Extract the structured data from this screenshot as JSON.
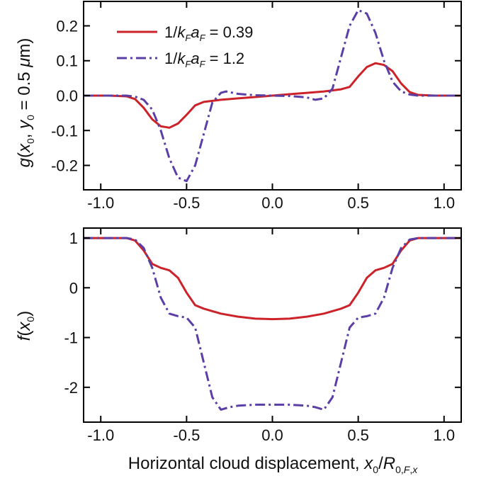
{
  "chart_data": [
    {
      "type": "line",
      "ylabel": "g(x0, y0 = 0.5 μm)",
      "xlim": [
        -1.1,
        1.1
      ],
      "ylim": [
        -0.27,
        0.27
      ],
      "xticks": [
        "-1.0",
        "-0.5",
        "0.0",
        "0.5",
        "1.0"
      ],
      "yticks": [
        "0.2",
        "0.1",
        "0.0",
        "-0.1",
        "-0.2"
      ],
      "legend_position": "top-left",
      "series": [
        {
          "name": "1/kFaF = 0.39",
          "color": "#cc2229",
          "style": "solid",
          "x": [
            -1.1,
            -0.95,
            -0.85,
            -0.8,
            -0.75,
            -0.7,
            -0.65,
            -0.6,
            -0.55,
            -0.5,
            -0.45,
            -0.4,
            -0.3,
            -0.2,
            -0.1,
            0.0,
            0.1,
            0.2,
            0.3,
            0.4,
            0.45,
            0.5,
            0.55,
            0.6,
            0.65,
            0.7,
            0.75,
            0.8,
            0.85,
            0.95,
            1.1
          ],
          "y": [
            0,
            0,
            -0.002,
            -0.01,
            -0.035,
            -0.068,
            -0.088,
            -0.092,
            -0.08,
            -0.055,
            -0.028,
            -0.018,
            -0.012,
            -0.008,
            -0.004,
            0,
            0.004,
            0.008,
            0.012,
            0.018,
            0.025,
            0.055,
            0.082,
            0.093,
            0.088,
            0.07,
            0.035,
            0.01,
            0.002,
            0,
            0
          ]
        },
        {
          "name": "1/kFaF = 1.2",
          "color": "#5b3fa6",
          "style": "dash-dot",
          "x": [
            -1.1,
            -0.85,
            -0.8,
            -0.75,
            -0.7,
            -0.65,
            -0.6,
            -0.55,
            -0.5,
            -0.45,
            -0.4,
            -0.35,
            -0.3,
            -0.27,
            -0.2,
            -0.1,
            0.0,
            0.1,
            0.2,
            0.25,
            0.3,
            0.35,
            0.4,
            0.45,
            0.5,
            0.55,
            0.6,
            0.65,
            0.7,
            0.75,
            0.8,
            0.85,
            1.1
          ],
          "y": [
            0,
            0,
            -0.003,
            -0.012,
            -0.04,
            -0.1,
            -0.18,
            -0.235,
            -0.245,
            -0.2,
            -0.11,
            -0.02,
            0.008,
            0.012,
            0.005,
            0.001,
            0,
            -0.001,
            -0.005,
            -0.012,
            -0.008,
            0.02,
            0.11,
            0.2,
            0.245,
            0.235,
            0.18,
            0.1,
            0.04,
            0.012,
            0.003,
            0,
            0
          ]
        }
      ]
    },
    {
      "type": "line",
      "xlabel": "Horizontal cloud displacement, x0/R0,F,x",
      "ylabel": "f(x0)",
      "xlim": [
        -1.1,
        1.1
      ],
      "ylim": [
        -2.7,
        1.2
      ],
      "xticks": [
        "-1.0",
        "-0.5",
        "0.0",
        "0.5",
        "1.0"
      ],
      "yticks": [
        "1",
        "0",
        "-1",
        "-2"
      ],
      "series": [
        {
          "name": "1/kFaF = 0.39",
          "color": "#cc2229",
          "style": "solid",
          "x": [
            -1.1,
            -0.85,
            -0.8,
            -0.75,
            -0.7,
            -0.65,
            -0.6,
            -0.55,
            -0.5,
            -0.45,
            -0.4,
            -0.3,
            -0.2,
            -0.1,
            0.0,
            0.1,
            0.2,
            0.3,
            0.4,
            0.45,
            0.5,
            0.55,
            0.6,
            0.65,
            0.7,
            0.75,
            0.8,
            0.85,
            1.1
          ],
          "y": [
            1,
            1,
            0.95,
            0.75,
            0.48,
            0.4,
            0.35,
            0.2,
            -0.1,
            -0.35,
            -0.42,
            -0.52,
            -0.58,
            -0.62,
            -0.63,
            -0.62,
            -0.58,
            -0.52,
            -0.42,
            -0.35,
            -0.1,
            0.2,
            0.35,
            0.4,
            0.48,
            0.75,
            0.95,
            1,
            1
          ]
        },
        {
          "name": "1/kFaF = 1.2",
          "color": "#5b3fa6",
          "style": "dash-dot",
          "x": [
            -1.1,
            -0.85,
            -0.8,
            -0.75,
            -0.7,
            -0.65,
            -0.6,
            -0.55,
            -0.5,
            -0.45,
            -0.4,
            -0.35,
            -0.3,
            -0.25,
            -0.2,
            -0.1,
            0.0,
            0.1,
            0.2,
            0.25,
            0.3,
            0.35,
            0.4,
            0.45,
            0.5,
            0.55,
            0.6,
            0.65,
            0.7,
            0.75,
            0.8,
            0.85,
            1.1
          ],
          "y": [
            1,
            1,
            0.97,
            0.8,
            0.4,
            -0.2,
            -0.52,
            -0.57,
            -0.6,
            -0.8,
            -1.5,
            -2.2,
            -2.45,
            -2.4,
            -2.37,
            -2.35,
            -2.35,
            -2.35,
            -2.37,
            -2.4,
            -2.45,
            -2.2,
            -1.5,
            -0.8,
            -0.6,
            -0.57,
            -0.52,
            -0.2,
            0.4,
            0.8,
            0.97,
            1,
            1
          ]
        }
      ]
    }
  ]
}
